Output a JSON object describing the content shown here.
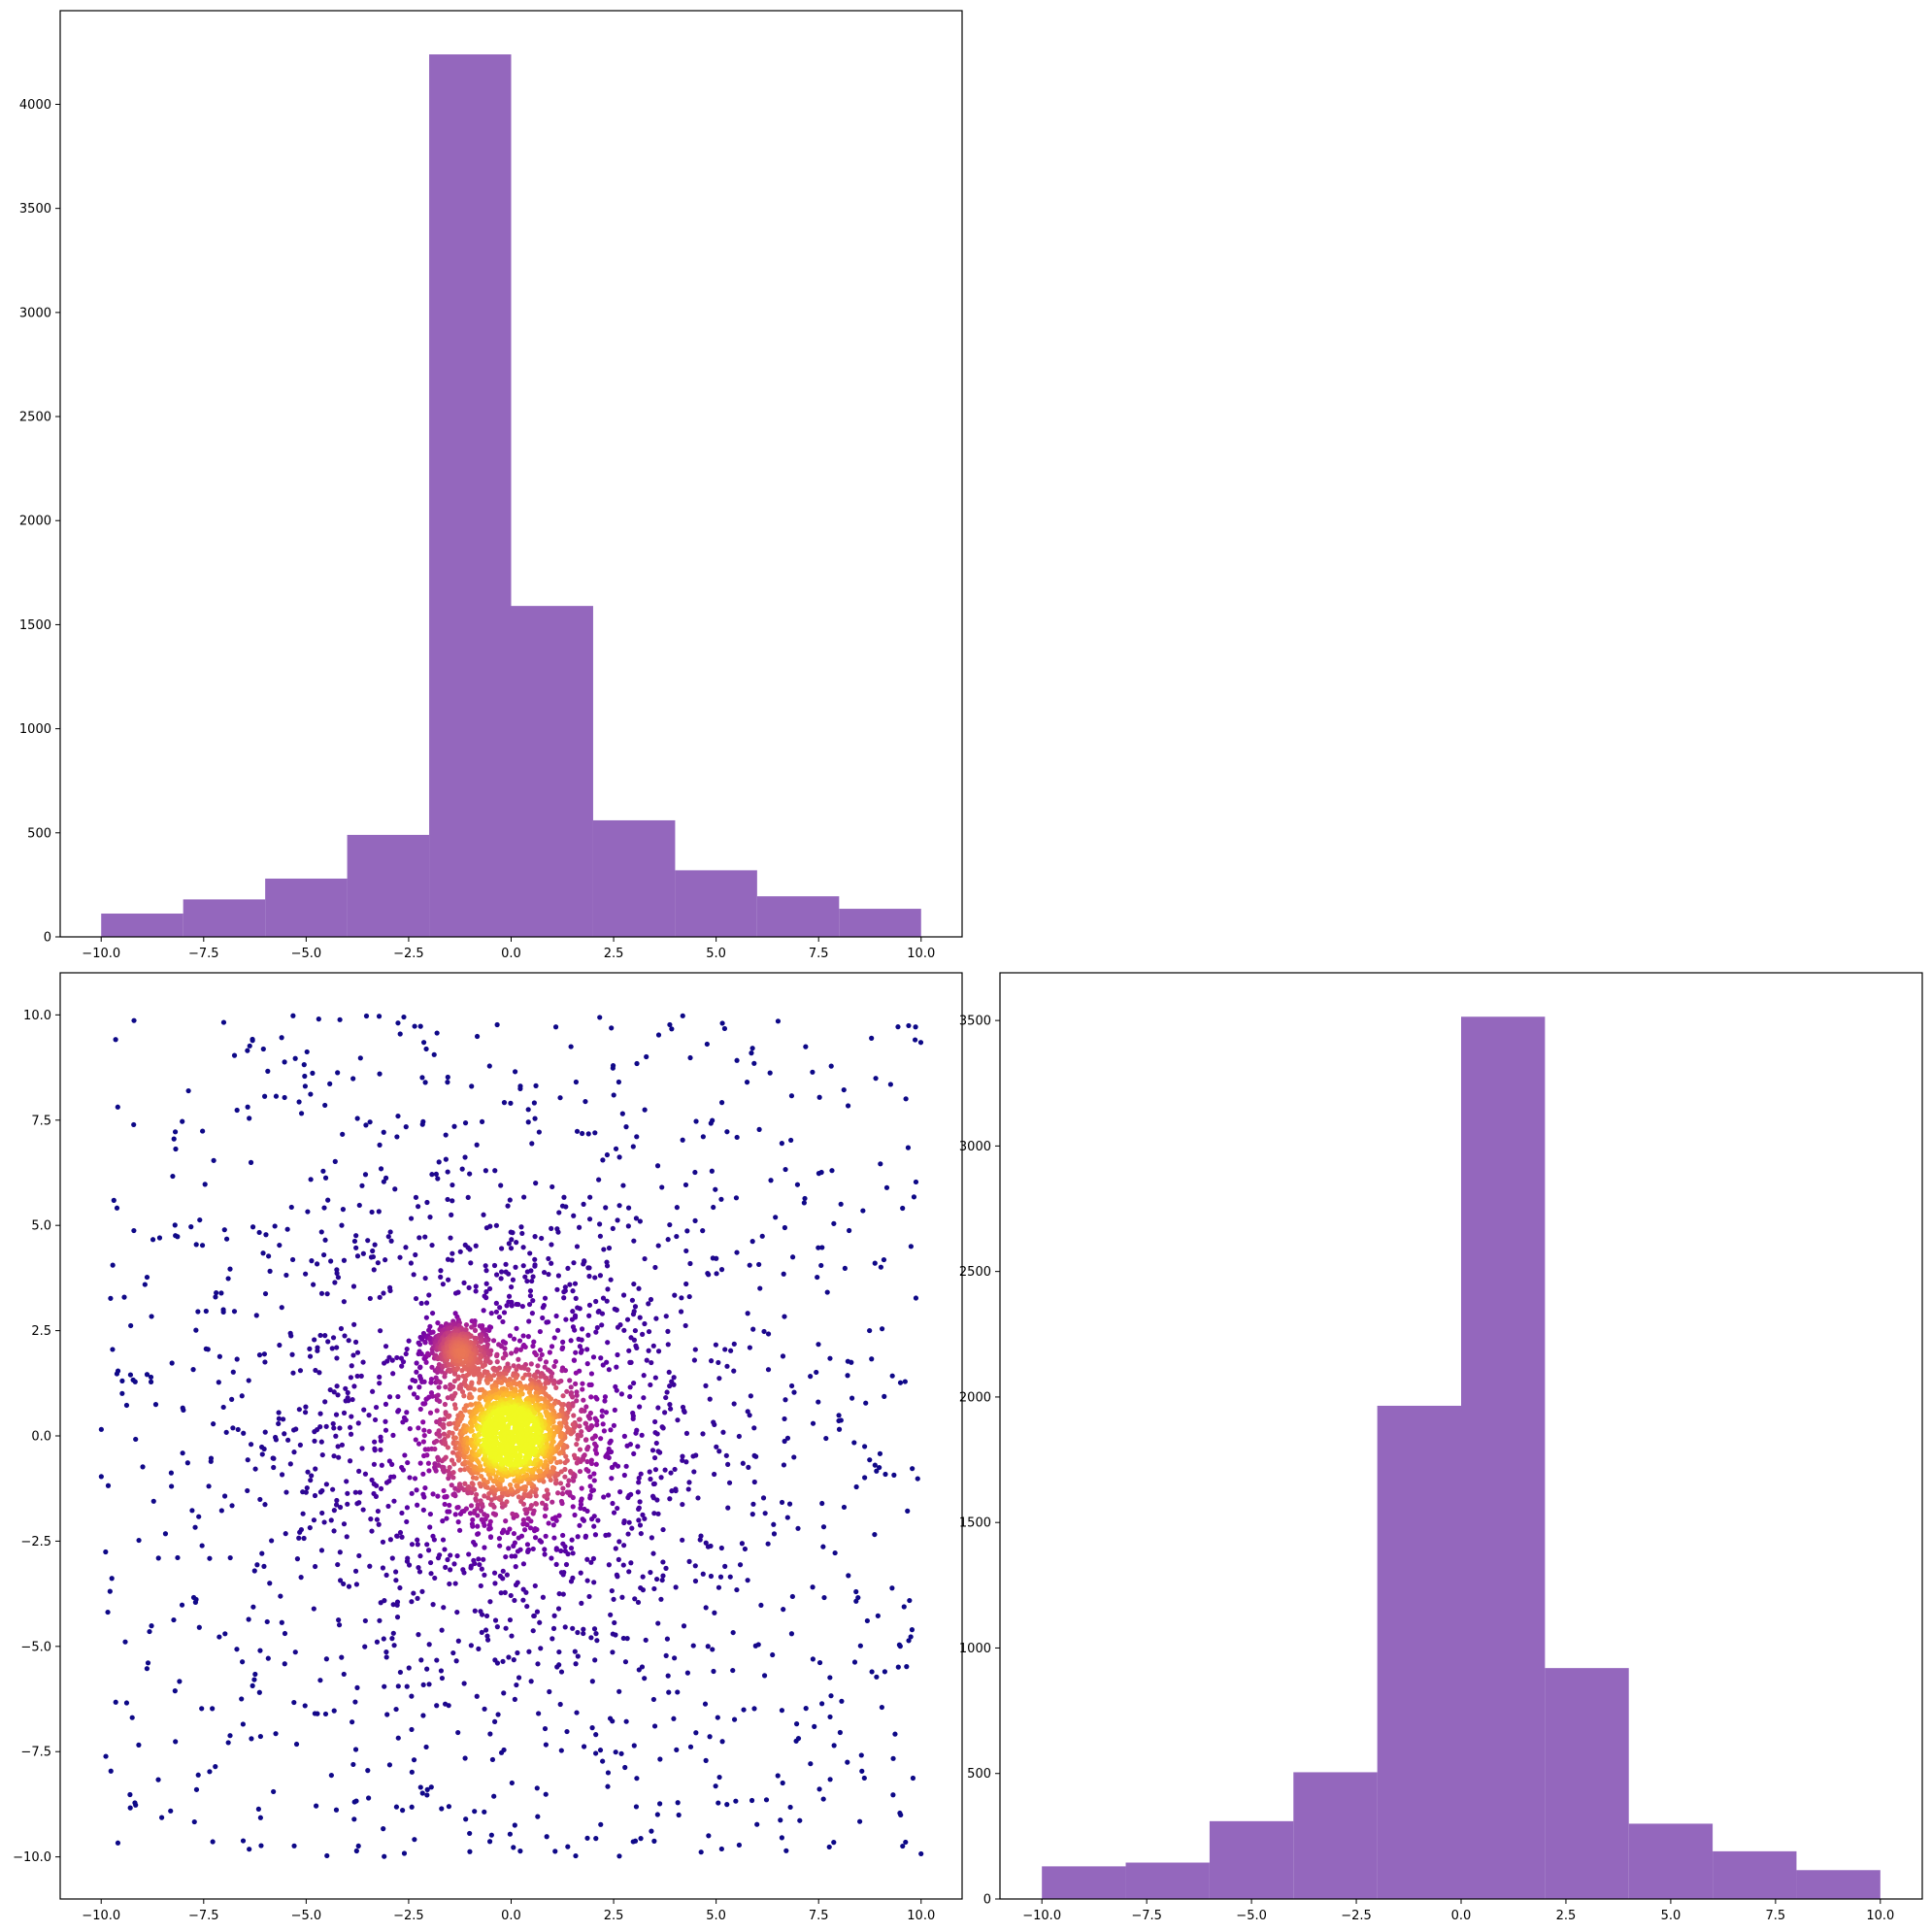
{
  "colors": {
    "hist_fill": "#9467bd",
    "axes_frame": "#000000",
    "scatter_colormap": "plasma",
    "background": "#ffffff"
  },
  "chart_data": [
    {
      "id": "top-histogram",
      "type": "bar",
      "title": "",
      "xlabel": "",
      "ylabel": "",
      "bin_edges": [
        -10,
        -8,
        -6,
        -4,
        -2,
        0,
        2,
        4,
        6,
        8,
        10
      ],
      "values": [
        112,
        180,
        280,
        490,
        4240,
        1590,
        560,
        320,
        195,
        135
      ],
      "xlim": [
        -11,
        11
      ],
      "ylim": [
        0,
        4450
      ],
      "xticks": [
        -10,
        -7.5,
        -5,
        -2.5,
        0,
        2.5,
        5,
        7.5,
        10
      ],
      "xtick_labels": [
        "−10.0",
        "−7.5",
        "−5.0",
        "−2.5",
        "0.0",
        "2.5",
        "5.0",
        "7.5",
        "10.0"
      ],
      "yticks": [
        0,
        500,
        1000,
        1500,
        2000,
        2500,
        3000,
        3500,
        4000
      ],
      "ytick_labels": [
        "0",
        "500",
        "1000",
        "1500",
        "2000",
        "2500",
        "3000",
        "3500",
        "4000"
      ],
      "grid": false
    },
    {
      "id": "scatter",
      "type": "scatter",
      "title": "",
      "xlabel": "",
      "ylabel": "",
      "description_of_distribution": {
        "uniform_background": {
          "x_range": [
            -10,
            10
          ],
          "y_range": [
            -10,
            10
          ]
        },
        "cluster_main": {
          "center": [
            0,
            0
          ]
        },
        "cluster_small": {
          "center": [
            -1.3,
            2.1
          ]
        }
      },
      "color_encoding": "density (plasma colormap: dark purple = low, yellow = high)",
      "xlim": [
        -11,
        11
      ],
      "ylim": [
        -11,
        11
      ],
      "xticks": [
        -10,
        -7.5,
        -5,
        -2.5,
        0,
        2.5,
        5,
        7.5,
        10
      ],
      "xtick_labels": [
        "−10.0",
        "−7.5",
        "−5.0",
        "−2.5",
        "0.0",
        "2.5",
        "5.0",
        "7.5",
        "10.0"
      ],
      "yticks": [
        -10,
        -7.5,
        -5,
        -2.5,
        0,
        2.5,
        5,
        7.5,
        10
      ],
      "ytick_labels": [
        "−10.0",
        "−7.5",
        "−5.0",
        "−2.5",
        "0.0",
        "2.5",
        "5.0",
        "7.5",
        "10.0"
      ],
      "grid": false
    },
    {
      "id": "right-histogram",
      "type": "bar",
      "title": "",
      "xlabel": "",
      "ylabel": "",
      "bin_edges": [
        -10,
        -8,
        -6,
        -4,
        -2,
        0,
        2,
        4,
        6,
        8,
        10
      ],
      "values": [
        130,
        145,
        310,
        505,
        1965,
        3515,
        920,
        300,
        190,
        115
      ],
      "xlim": [
        -11,
        11
      ],
      "ylim": [
        0,
        3690
      ],
      "xticks": [
        -10,
        -7.5,
        -5,
        -2.5,
        0,
        2.5,
        5,
        7.5,
        10
      ],
      "xtick_labels": [
        "−10.0",
        "−7.5",
        "−5.0",
        "−2.5",
        "0.0",
        "2.5",
        "5.0",
        "7.5",
        "10.0"
      ],
      "yticks": [
        0,
        500,
        1000,
        1500,
        2000,
        2500,
        3000,
        3500
      ],
      "ytick_labels": [
        "0",
        "500",
        "1000",
        "1500",
        "2000",
        "2500",
        "3000",
        "3500"
      ],
      "grid": false
    }
  ]
}
